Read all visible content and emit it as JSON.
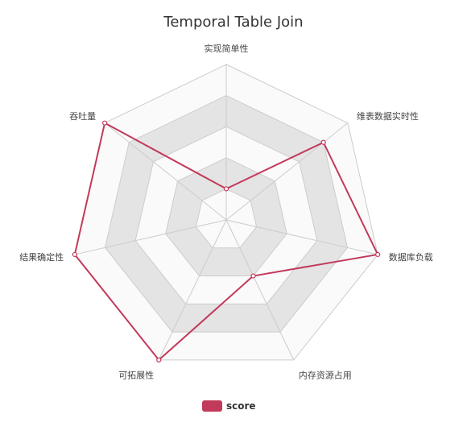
{
  "chart_data": {
    "type": "radar",
    "title": "Temporal Table Join",
    "indicators": [
      "实现简单性",
      "维表数据实时性",
      "数据库负载",
      "内存资源占用",
      "可拓展性",
      "结果确定性",
      "吞吐量"
    ],
    "max": 5,
    "series": [
      {
        "name": "score",
        "values": [
          1,
          4,
          5,
          2,
          5,
          5,
          5
        ]
      }
    ],
    "legend": "bottom-center",
    "colors": {
      "series": "#c23a5a",
      "band_fill": "#e4e4e4",
      "band_alt": "#fafafa",
      "grid_line": "#cccccc"
    }
  }
}
